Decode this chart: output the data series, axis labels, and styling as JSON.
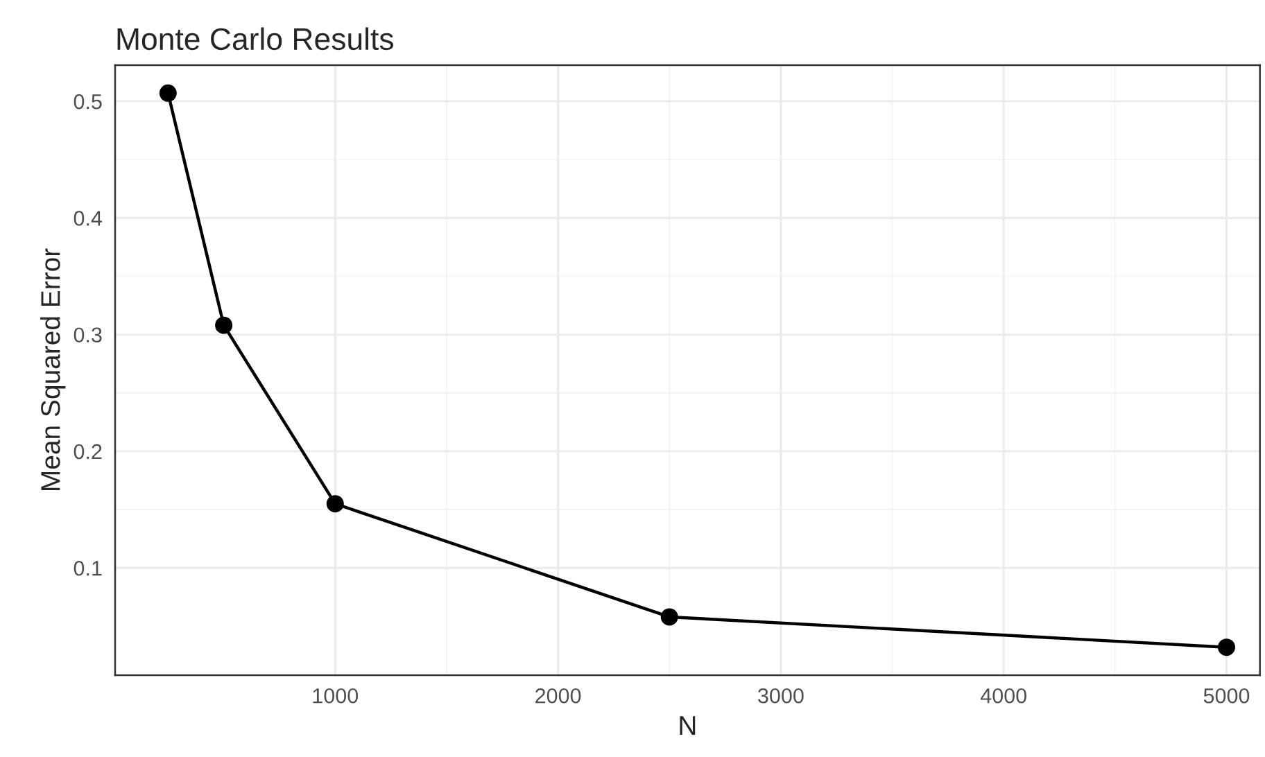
{
  "chart_data": {
    "type": "line",
    "title": "Monte Carlo Results",
    "xlabel": "N",
    "ylabel": "Mean Squared Error",
    "x": [
      250,
      500,
      1000,
      2500,
      5000
    ],
    "series": [
      {
        "color": "#000000",
        "values": [
          0.507,
          0.308,
          0.155,
          0.058,
          0.032
        ]
      }
    ],
    "xlim": [
      12.5,
      5150
    ],
    "xticks": [
      1000,
      2000,
      3000,
      4000,
      5000
    ],
    "ylim": [
      0.008,
      0.531
    ],
    "yticks": [
      0.1,
      0.2,
      0.3,
      0.4,
      0.5
    ],
    "grid": true,
    "marker": "circle",
    "line_style": "solid"
  }
}
